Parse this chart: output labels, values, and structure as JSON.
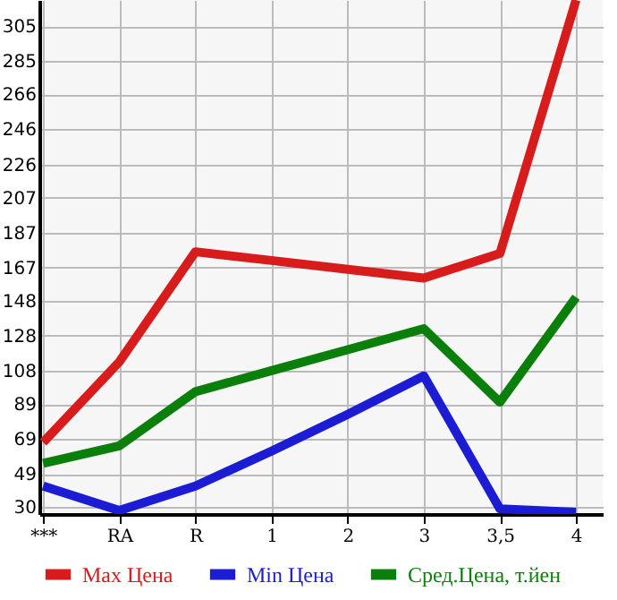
{
  "chart_data": {
    "type": "line",
    "categories": [
      "***",
      "RA",
      "R",
      "1",
      "2",
      "3",
      "3,5",
      "4"
    ],
    "series": [
      {
        "name": "Max Цена",
        "color": "#d81b1b",
        "values": [
          67,
          113,
          176,
          171,
          166,
          161,
          175,
          320
        ]
      },
      {
        "name": "Min Цена",
        "color": "#1c1cd4",
        "values": [
          42,
          28,
          42,
          62,
          83,
          105,
          29,
          27
        ]
      },
      {
        "name": "Сред.Цена, т.йен",
        "color": "#0a800a",
        "values": [
          55,
          65,
          96,
          108,
          120,
          132,
          90,
          150
        ]
      }
    ],
    "ylim": [
      26,
      320
    ],
    "yticks": [
      30,
      49,
      69,
      89,
      108,
      128,
      148,
      167,
      187,
      207,
      226,
      246,
      266,
      285,
      305
    ],
    "grid": true,
    "legend": "bottom",
    "marker": "none",
    "line_style": "solid"
  }
}
